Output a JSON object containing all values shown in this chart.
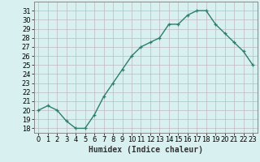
{
  "xlabel": "Humidex (Indice chaleur)",
  "x": [
    0,
    1,
    2,
    3,
    4,
    5,
    6,
    7,
    8,
    9,
    10,
    11,
    12,
    13,
    14,
    15,
    16,
    17,
    18,
    19,
    20,
    21,
    22,
    23
  ],
  "y": [
    20.0,
    20.5,
    20.0,
    18.8,
    18.0,
    18.0,
    19.5,
    21.5,
    23.0,
    24.5,
    26.0,
    27.0,
    27.5,
    28.0,
    29.5,
    29.5,
    30.5,
    31.0,
    31.0,
    29.5,
    28.5,
    27.5,
    26.5,
    25.0
  ],
  "line_color": "#2e7d6e",
  "marker": "+",
  "marker_size": 3,
  "bg_color": "#d8f0f0",
  "grid_color": "#c0b8c0",
  "tick_color": "#333333",
  "ylim": [
    17.5,
    32.0
  ],
  "xlim": [
    -0.5,
    23.5
  ],
  "yticks": [
    18,
    19,
    20,
    21,
    22,
    23,
    24,
    25,
    26,
    27,
    28,
    29,
    30,
    31
  ],
  "xticks": [
    0,
    1,
    2,
    3,
    4,
    5,
    6,
    7,
    8,
    9,
    10,
    11,
    12,
    13,
    14,
    15,
    16,
    17,
    18,
    19,
    20,
    21,
    22,
    23
  ],
  "label_fontsize": 7,
  "tick_fontsize": 6,
  "line_width": 1.0
}
